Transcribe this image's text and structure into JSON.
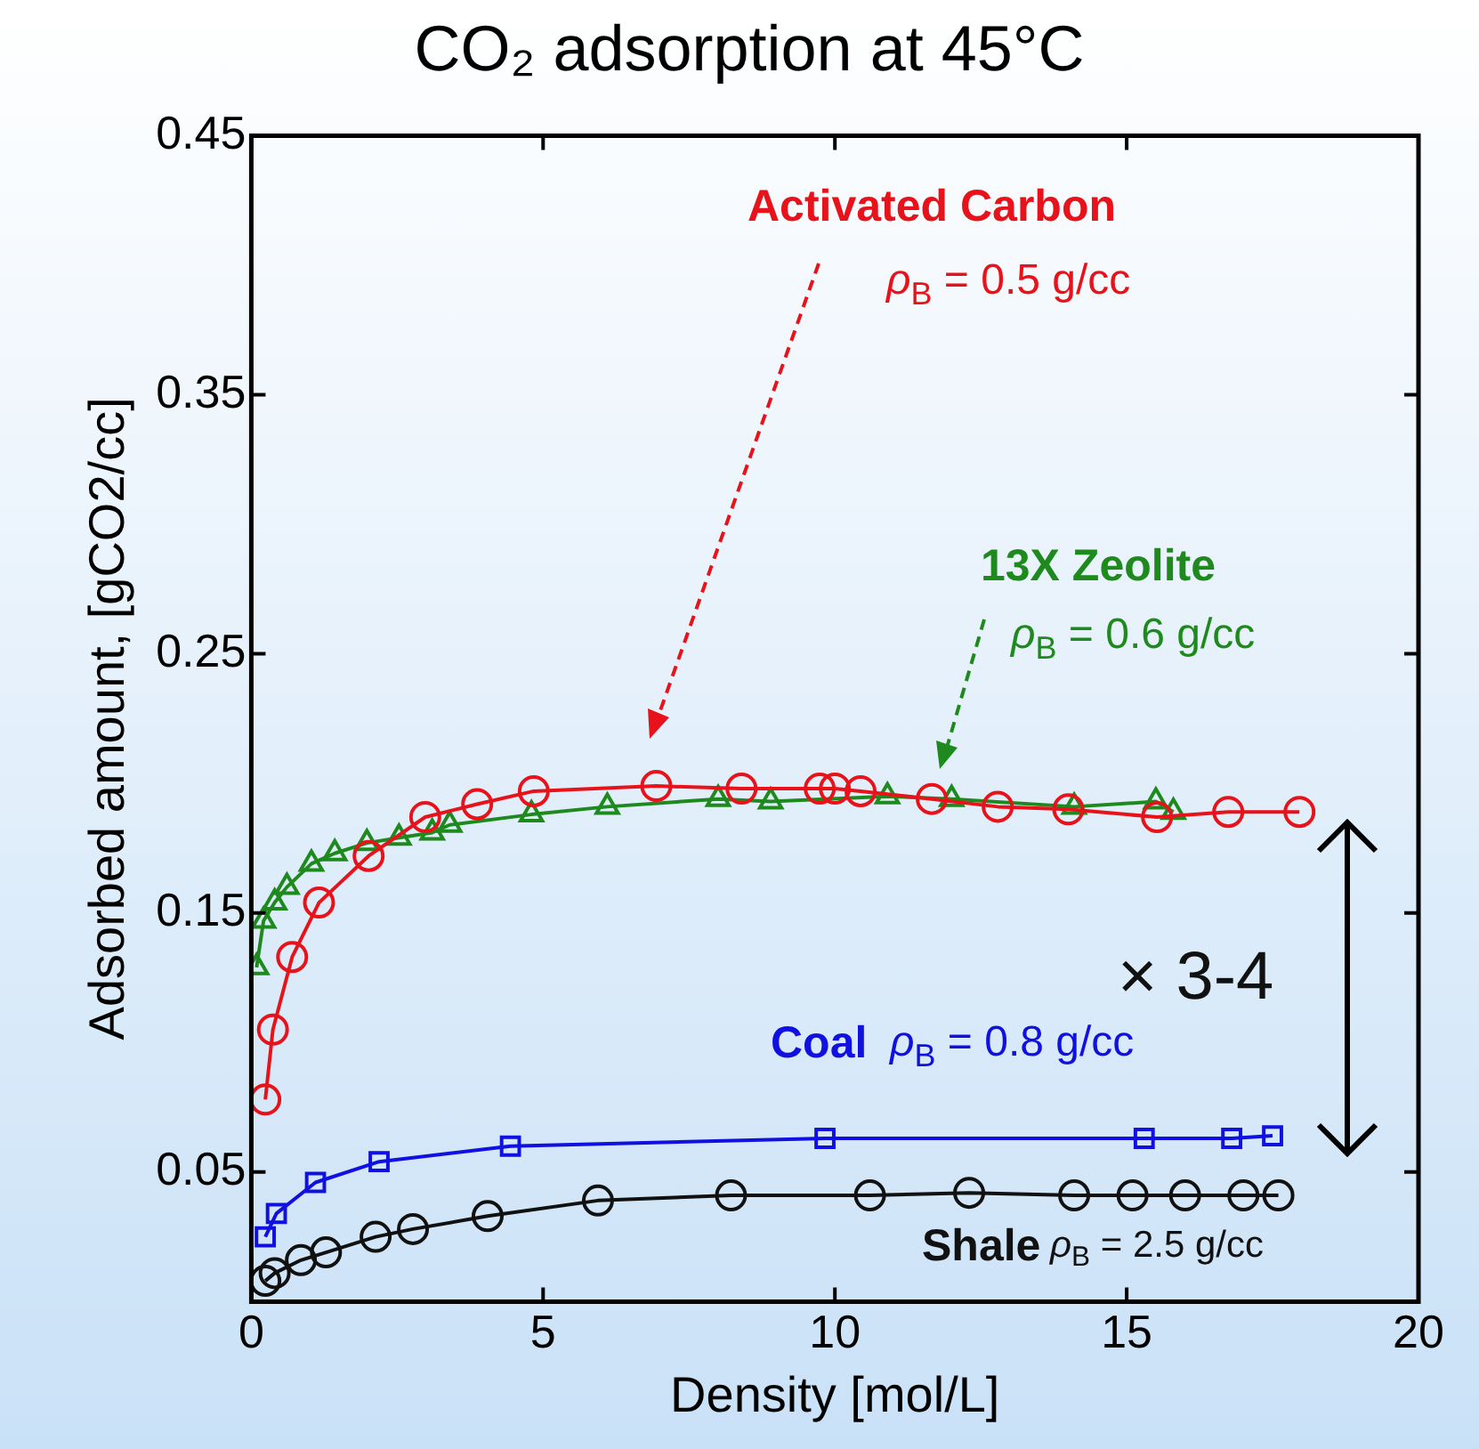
{
  "chart_data": {
    "type": "line",
    "title": "CO₂ adsorption at 45°C",
    "xlabel": "Density [mol/L]",
    "ylabel": "Adsorbed amount, [gCO2/cc]",
    "xlim": [
      0,
      20
    ],
    "xticks": [
      0,
      5,
      10,
      15,
      20
    ],
    "ylim": [
      0,
      0.45
    ],
    "yticks": [
      0.05,
      0.15,
      0.25,
      0.35,
      0.45
    ],
    "grid": false,
    "legend": false,
    "line_style": "solid",
    "series": [
      {
        "name": "Activated Carbon",
        "color": "#e8131a",
        "marker": "circle",
        "x": [
          0.24,
          0.37,
          0.7,
          1.16,
          2.01,
          2.98,
          3.87,
          4.84,
          6.94,
          8.4,
          9.74,
          10.0,
          10.44,
          11.66,
          12.79,
          14.0,
          15.52,
          16.74,
          17.96
        ],
        "values": [
          0.078,
          0.105,
          0.133,
          0.154,
          0.172,
          0.187,
          0.192,
          0.197,
          0.199,
          0.198,
          0.198,
          0.198,
          0.197,
          0.194,
          0.191,
          0.19,
          0.187,
          0.189,
          0.189
        ]
      },
      {
        "name": "13X Zeolite",
        "color": "#1e8a1e",
        "marker": "triangle",
        "x": [
          0.09,
          0.21,
          0.4,
          0.61,
          1.03,
          1.43,
          1.98,
          2.53,
          3.1,
          3.4,
          4.8,
          6.1,
          8.0,
          8.9,
          10.9,
          12.0,
          14.1,
          15.5,
          15.8
        ],
        "values": [
          0.129,
          0.147,
          0.154,
          0.16,
          0.169,
          0.173,
          0.177,
          0.179,
          0.181,
          0.184,
          0.188,
          0.191,
          0.194,
          0.193,
          0.195,
          0.194,
          0.191,
          0.193,
          0.189
        ]
      },
      {
        "name": "Coal",
        "color": "#1010e0",
        "marker": "square",
        "x": [
          0.24,
          0.43,
          1.1,
          2.19,
          4.44,
          9.83,
          15.3,
          16.8,
          17.5
        ],
        "values": [
          0.025,
          0.034,
          0.046,
          0.054,
          0.06,
          0.063,
          0.063,
          0.063,
          0.064
        ]
      },
      {
        "name": "Shale",
        "color": "#111111",
        "marker": "circle",
        "x": [
          0.24,
          0.4,
          0.85,
          1.28,
          2.13,
          2.77,
          4.05,
          5.94,
          8.22,
          10.6,
          12.3,
          14.1,
          15.1,
          16.0,
          17.0,
          17.6
        ],
        "values": [
          0.008,
          0.011,
          0.016,
          0.019,
          0.025,
          0.028,
          0.033,
          0.039,
          0.041,
          0.041,
          0.042,
          0.041,
          0.041,
          0.041,
          0.041,
          0.041
        ]
      }
    ],
    "annotations": [
      "ρ$_{B}$ = 0.5 g/cc",
      "ρ$_{B}$ = 0.6 g/cc",
      "ρ$_{B}$ = 0.8 g/cc",
      "ρ$_{B}$ = 2.5 g/cc",
      "× 3-4"
    ]
  }
}
